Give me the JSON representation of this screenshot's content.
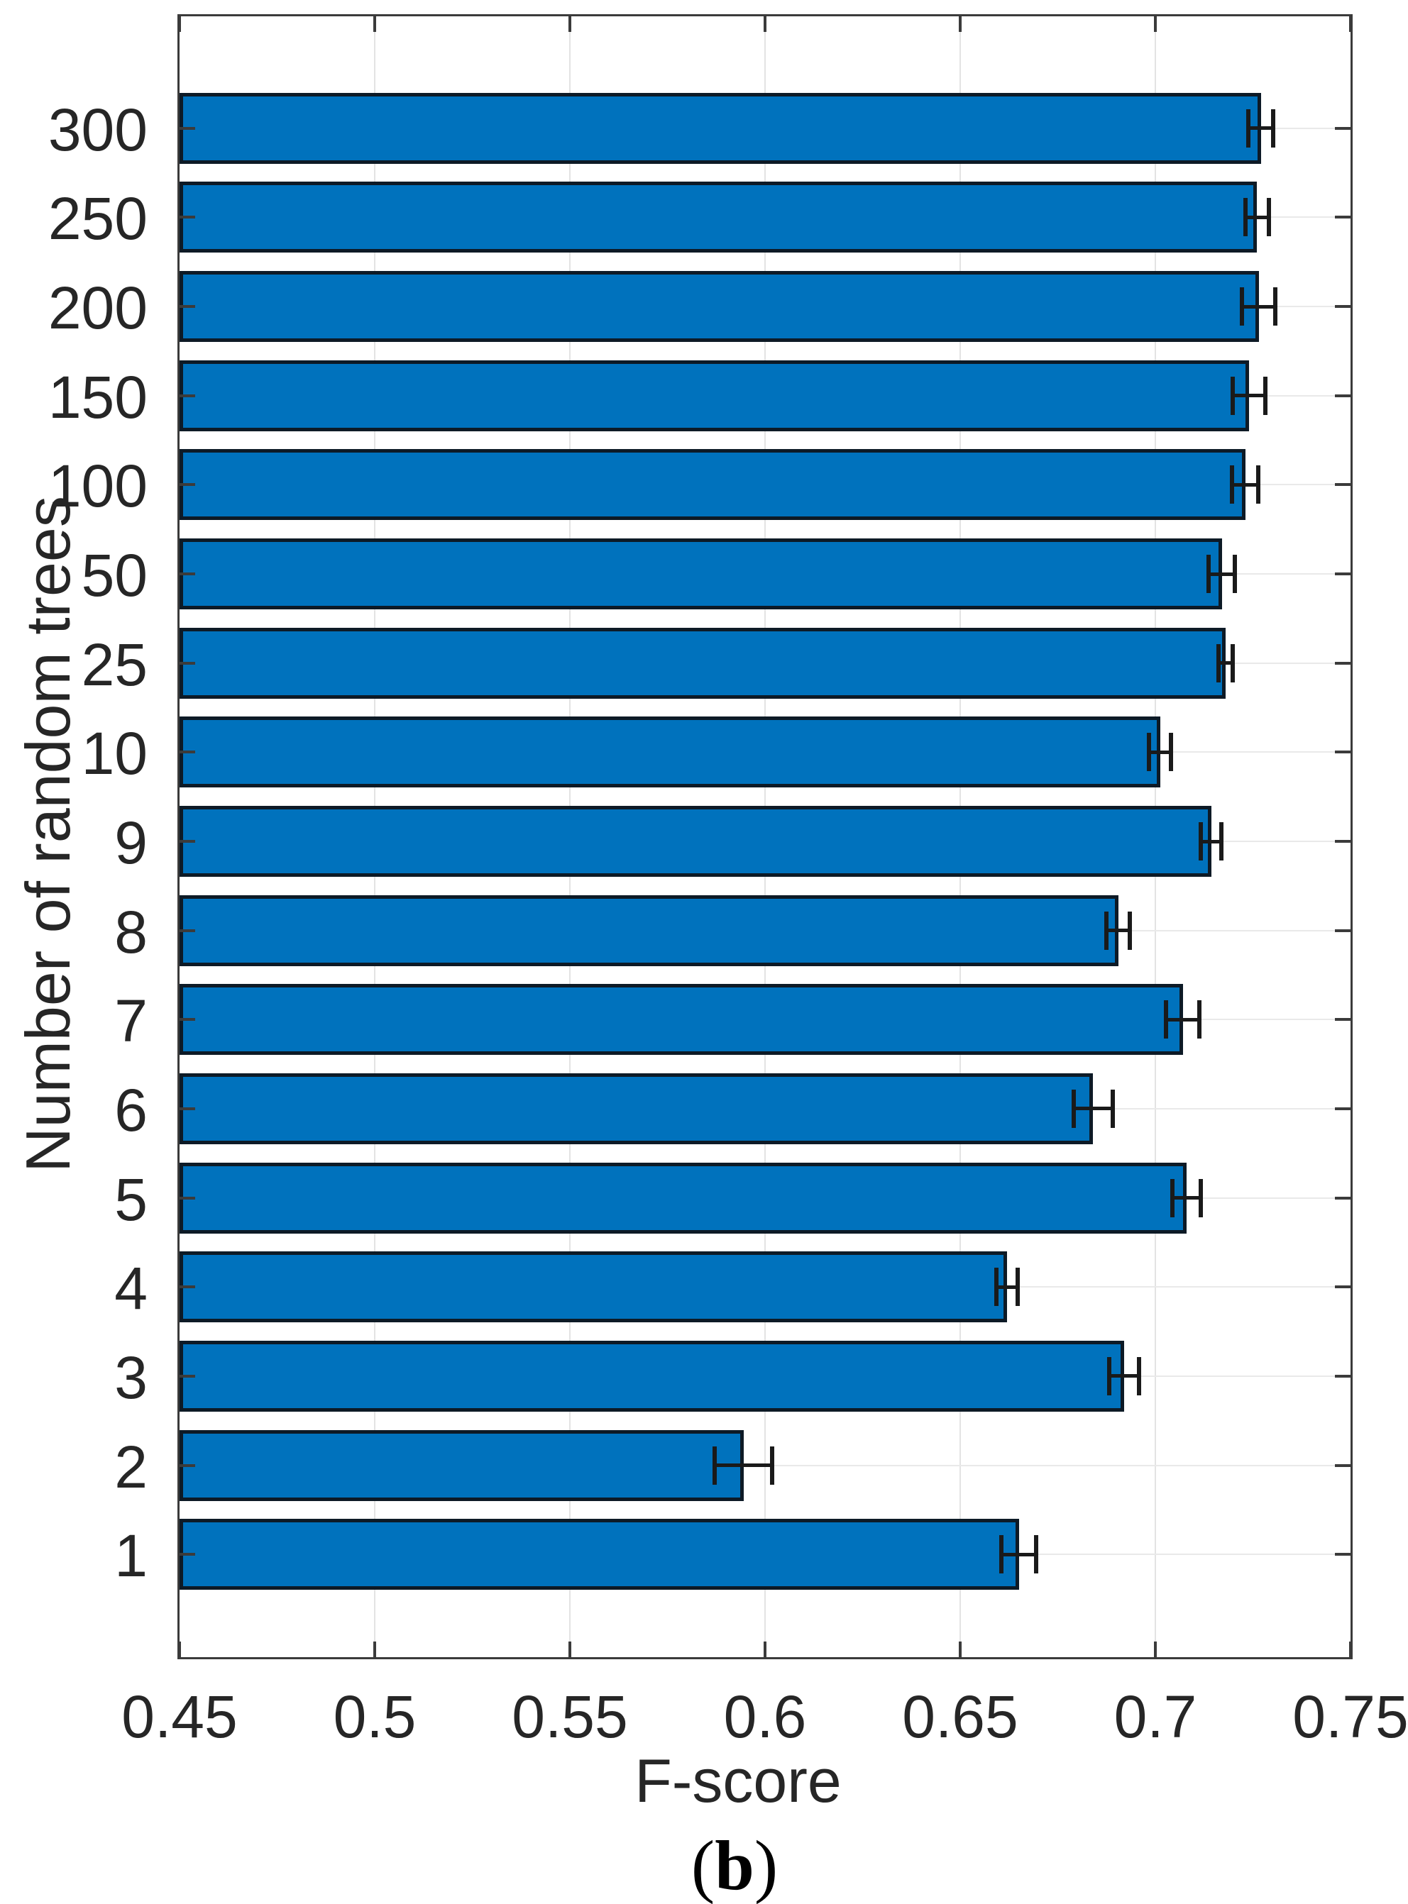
{
  "chart_data": {
    "type": "bar",
    "orientation": "horizontal",
    "title": "",
    "xlabel": "F-score",
    "ylabel": "Number of random trees",
    "categories": [
      "300",
      "250",
      "200",
      "150",
      "100",
      "50",
      "25",
      "10",
      "9",
      "8",
      "7",
      "6",
      "5",
      "4",
      "3",
      "2",
      "1"
    ],
    "series": [
      {
        "name": "F-score",
        "values": [
          0.727,
          0.726,
          0.7265,
          0.724,
          0.723,
          0.717,
          0.718,
          0.7012,
          0.7143,
          0.6905,
          0.707,
          0.684,
          0.708,
          0.662,
          0.692,
          0.5945,
          0.665
        ],
        "errors": [
          0.0032,
          0.003,
          0.0043,
          0.0042,
          0.0034,
          0.0033,
          0.0018,
          0.0028,
          0.0026,
          0.003,
          0.0042,
          0.005,
          0.0036,
          0.0027,
          0.0039,
          0.0074,
          0.0045
        ]
      }
    ],
    "xlim": [
      0.45,
      0.75
    ],
    "xticks": [
      0.45,
      0.5,
      0.55,
      0.6,
      0.65,
      0.7,
      0.75
    ],
    "xtick_labels": [
      "0.45",
      "0.5",
      "0.55",
      "0.6",
      "0.65",
      "0.7",
      "0.75"
    ],
    "grid": true,
    "legend": false,
    "bar_color": "#0072BD",
    "bar_edge_color": "#0d1a26",
    "errorbar_color": "#1a1a1a",
    "grid_color": "#e3e3e3",
    "axis_color": "#3b3b3b",
    "text_color": "#262626"
  },
  "caption": {
    "prefix": "(",
    "letter": "b",
    "suffix": ")"
  }
}
